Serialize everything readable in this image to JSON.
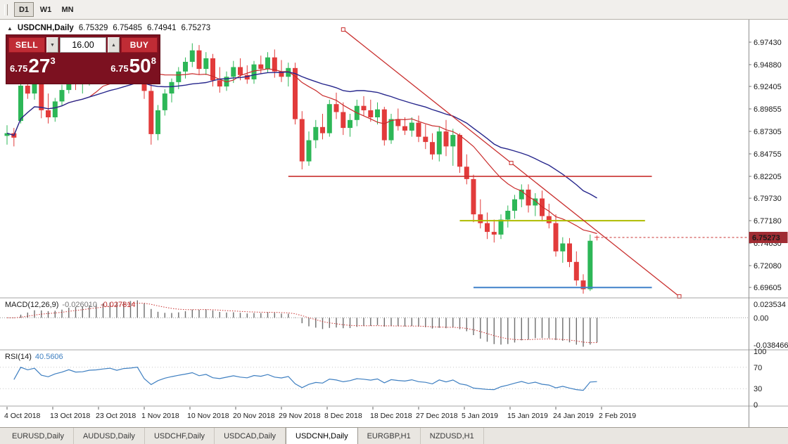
{
  "toolbar": {
    "periods": [
      "D1",
      "W1",
      "MN"
    ],
    "active_period": "D1"
  },
  "chart": {
    "title": "USDCNH,Daily",
    "collapse_icon": "▲",
    "ohlc": {
      "open": "6.75329",
      "high": "6.75485",
      "low": "6.74941",
      "close": "6.75273"
    }
  },
  "trade_panel": {
    "sell_label": "SELL",
    "buy_label": "BUY",
    "lot_size": "16.00",
    "lot_down_icon": "▼",
    "lot_up_icon": "▲",
    "sell_price": {
      "big_prefix": "6.75",
      "big": "27",
      "sup": "3"
    },
    "buy_price": {
      "big_prefix": "6.75",
      "big": "50",
      "sup": "8"
    }
  },
  "price_axis": {
    "labels": [
      "6.97430",
      "6.94880",
      "6.92405",
      "6.89855",
      "6.87305",
      "6.84755",
      "6.82205",
      "6.79730",
      "6.77180",
      "6.74630",
      "6.72080",
      "6.69605"
    ],
    "current": "6.75273"
  },
  "macd": {
    "label": "MACD(12,26,9)",
    "value1": "-0.026010",
    "value2": "-0.027814",
    "axis": [
      "0.023534",
      "0.00",
      "-0.038466"
    ]
  },
  "rsi": {
    "label": "RSI(14)",
    "value": "40.5606",
    "axis": [
      "100",
      "70",
      "30",
      "0"
    ]
  },
  "date_axis": [
    "4 Oct 2018",
    "13 Oct 2018",
    "23 Oct 2018",
    "1 Nov 2018",
    "10 Nov 2018",
    "20 Nov 2018",
    "29 Nov 2018",
    "8 Dec 2018",
    "18 Dec 2018",
    "27 Dec 2018",
    "5 Jan 2019",
    "15 Jan 2019",
    "24 Jan 2019",
    "2 Feb 2019"
  ],
  "tabs": {
    "items": [
      "EURUSD,Daily",
      "AUDUSD,Daily",
      "USDCHF,Daily",
      "USDCAD,Daily",
      "USDCNH,Daily",
      "EURGBP,H1",
      "NZDUSD,H1"
    ],
    "active": "USDCNH,Daily"
  },
  "chart_data": {
    "type": "candlestick",
    "symbol": "USDCNH",
    "timeframe": "Daily",
    "price_range": [
      6.6858,
      6.9982
    ],
    "candles": [
      [
        6.868,
        6.88,
        6.858,
        6.871
      ],
      [
        6.871,
        6.877,
        6.856,
        6.866
      ],
      [
        6.885,
        6.93,
        6.882,
        6.925
      ],
      [
        6.925,
        6.935,
        6.91,
        6.916
      ],
      [
        6.916,
        6.931,
        6.909,
        6.927
      ],
      [
        6.927,
        6.936,
        6.888,
        6.897
      ],
      [
        6.897,
        6.916,
        6.882,
        6.889
      ],
      [
        6.889,
        6.911,
        6.884,
        6.907
      ],
      [
        6.907,
        6.926,
        6.902,
        6.92
      ],
      [
        6.92,
        6.945,
        6.916,
        6.939
      ],
      [
        6.939,
        6.947,
        6.92,
        6.928
      ],
      [
        6.928,
        6.945,
        6.916,
        6.93
      ],
      [
        6.93,
        6.946,
        6.925,
        6.942
      ],
      [
        6.942,
        6.96,
        6.934,
        6.945
      ],
      [
        6.945,
        6.956,
        6.935,
        6.952
      ],
      [
        6.952,
        6.966,
        6.944,
        6.958
      ],
      [
        6.958,
        6.967,
        6.945,
        6.95
      ],
      [
        6.95,
        6.969,
        6.944,
        6.963
      ],
      [
        6.963,
        6.974,
        6.952,
        6.967
      ],
      [
        6.967,
        6.981,
        6.959,
        6.974
      ],
      [
        6.974,
        6.979,
        6.91,
        6.919
      ],
      [
        6.919,
        6.929,
        6.858,
        6.87
      ],
      [
        6.87,
        6.903,
        6.863,
        6.897
      ],
      [
        6.897,
        6.921,
        6.891,
        6.916
      ],
      [
        6.916,
        6.933,
        6.906,
        6.929
      ],
      [
        6.929,
        6.946,
        6.921,
        6.941
      ],
      [
        6.941,
        6.957,
        6.933,
        6.952
      ],
      [
        6.952,
        6.973,
        6.946,
        6.965
      ],
      [
        6.965,
        6.971,
        6.937,
        6.944
      ],
      [
        6.944,
        6.963,
        6.937,
        6.956
      ],
      [
        6.956,
        6.961,
        6.924,
        6.931
      ],
      [
        6.931,
        6.946,
        6.917,
        6.924
      ],
      [
        6.924,
        6.941,
        6.919,
        6.935
      ],
      [
        6.935,
        6.953,
        6.928,
        6.946
      ],
      [
        6.946,
        6.956,
        6.931,
        6.937
      ],
      [
        6.937,
        6.948,
        6.927,
        6.932
      ],
      [
        6.932,
        6.953,
        6.927,
        6.949
      ],
      [
        6.949,
        6.959,
        6.938,
        6.944
      ],
      [
        6.944,
        6.963,
        6.94,
        6.957
      ],
      [
        6.957,
        6.966,
        6.934,
        6.941
      ],
      [
        6.941,
        6.954,
        6.929,
        6.935
      ],
      [
        6.935,
        6.951,
        6.924,
        6.945
      ],
      [
        6.945,
        6.951,
        6.881,
        6.887
      ],
      [
        6.887,
        6.896,
        6.83,
        6.839
      ],
      [
        6.839,
        6.873,
        6.834,
        6.863
      ],
      [
        6.863,
        6.886,
        6.854,
        6.878
      ],
      [
        6.878,
        6.893,
        6.864,
        6.871
      ],
      [
        6.871,
        6.909,
        6.867,
        6.904
      ],
      [
        6.904,
        6.917,
        6.887,
        6.895
      ],
      [
        6.895,
        6.906,
        6.869,
        6.877
      ],
      [
        6.877,
        6.893,
        6.867,
        6.886
      ],
      [
        6.886,
        6.909,
        6.879,
        6.902
      ],
      [
        6.902,
        6.913,
        6.891,
        6.897
      ],
      [
        6.897,
        6.909,
        6.884,
        6.889
      ],
      [
        6.889,
        6.906,
        6.881,
        6.898
      ],
      [
        6.898,
        6.901,
        6.857,
        6.863
      ],
      [
        6.863,
        6.893,
        6.859,
        6.887
      ],
      [
        6.887,
        6.899,
        6.874,
        6.879
      ],
      [
        6.879,
        6.889,
        6.869,
        6.874
      ],
      [
        6.874,
        6.889,
        6.867,
        6.883
      ],
      [
        6.883,
        6.891,
        6.861,
        6.867
      ],
      [
        6.867,
        6.881,
        6.853,
        6.861
      ],
      [
        6.861,
        6.871,
        6.841,
        6.847
      ],
      [
        6.847,
        6.879,
        6.839,
        6.873
      ],
      [
        6.873,
        6.886,
        6.845,
        6.856
      ],
      [
        6.856,
        6.876,
        6.834,
        6.869
      ],
      [
        6.869,
        6.871,
        6.826,
        6.833
      ],
      [
        6.833,
        6.847,
        6.813,
        6.819
      ],
      [
        6.819,
        6.824,
        6.77,
        6.779
      ],
      [
        6.779,
        6.796,
        6.763,
        6.769
      ],
      [
        6.769,
        6.781,
        6.751,
        6.759
      ],
      [
        6.759,
        6.773,
        6.747,
        6.756
      ],
      [
        6.756,
        6.779,
        6.751,
        6.773
      ],
      [
        6.773,
        6.789,
        6.764,
        6.783
      ],
      [
        6.783,
        6.801,
        6.774,
        6.796
      ],
      [
        6.796,
        6.813,
        6.787,
        6.807
      ],
      [
        6.807,
        6.813,
        6.781,
        6.789
      ],
      [
        6.789,
        6.803,
        6.777,
        6.797
      ],
      [
        6.797,
        6.806,
        6.771,
        6.777
      ],
      [
        6.777,
        6.791,
        6.763,
        6.769
      ],
      [
        6.769,
        6.779,
        6.731,
        6.737
      ],
      [
        6.737,
        6.753,
        6.724,
        6.746
      ],
      [
        6.746,
        6.752,
        6.719,
        6.725
      ],
      [
        6.725,
        6.737,
        6.698,
        6.704
      ],
      [
        6.704,
        6.711,
        6.689,
        6.694
      ],
      [
        6.694,
        6.756,
        6.692,
        6.749
      ],
      [
        6.75329,
        6.75485,
        6.74941,
        6.75273
      ]
    ],
    "moving_averages": [
      {
        "period": 13,
        "color": "#C92B2B"
      },
      {
        "period": 30,
        "color": "#26268C"
      }
    ],
    "trendline": {
      "from_index": 50,
      "from_price": 6.9886,
      "to_index": 99,
      "to_price": 6.6858,
      "color": "#C9302F"
    },
    "horizontal_segments": [
      {
        "price": 6.822,
        "from_index": 42,
        "to_index": 95,
        "color": "#C9302F",
        "width": 1.6
      },
      {
        "price": 6.7718,
        "from_index": 67,
        "to_index": 94,
        "color": "#AFBB00",
        "width": 2
      },
      {
        "price": 6.696,
        "from_index": 69,
        "to_index": 95,
        "color": "#3F81C9",
        "width": 2
      }
    ],
    "colors": {
      "bull": "#2DB757",
      "bear": "#E23B3B",
      "macd_hist": "#6E6E6E",
      "macd_signal": "#C9302F",
      "rsi_line": "#3E7FC1",
      "price_badge": "#A02C33"
    }
  }
}
